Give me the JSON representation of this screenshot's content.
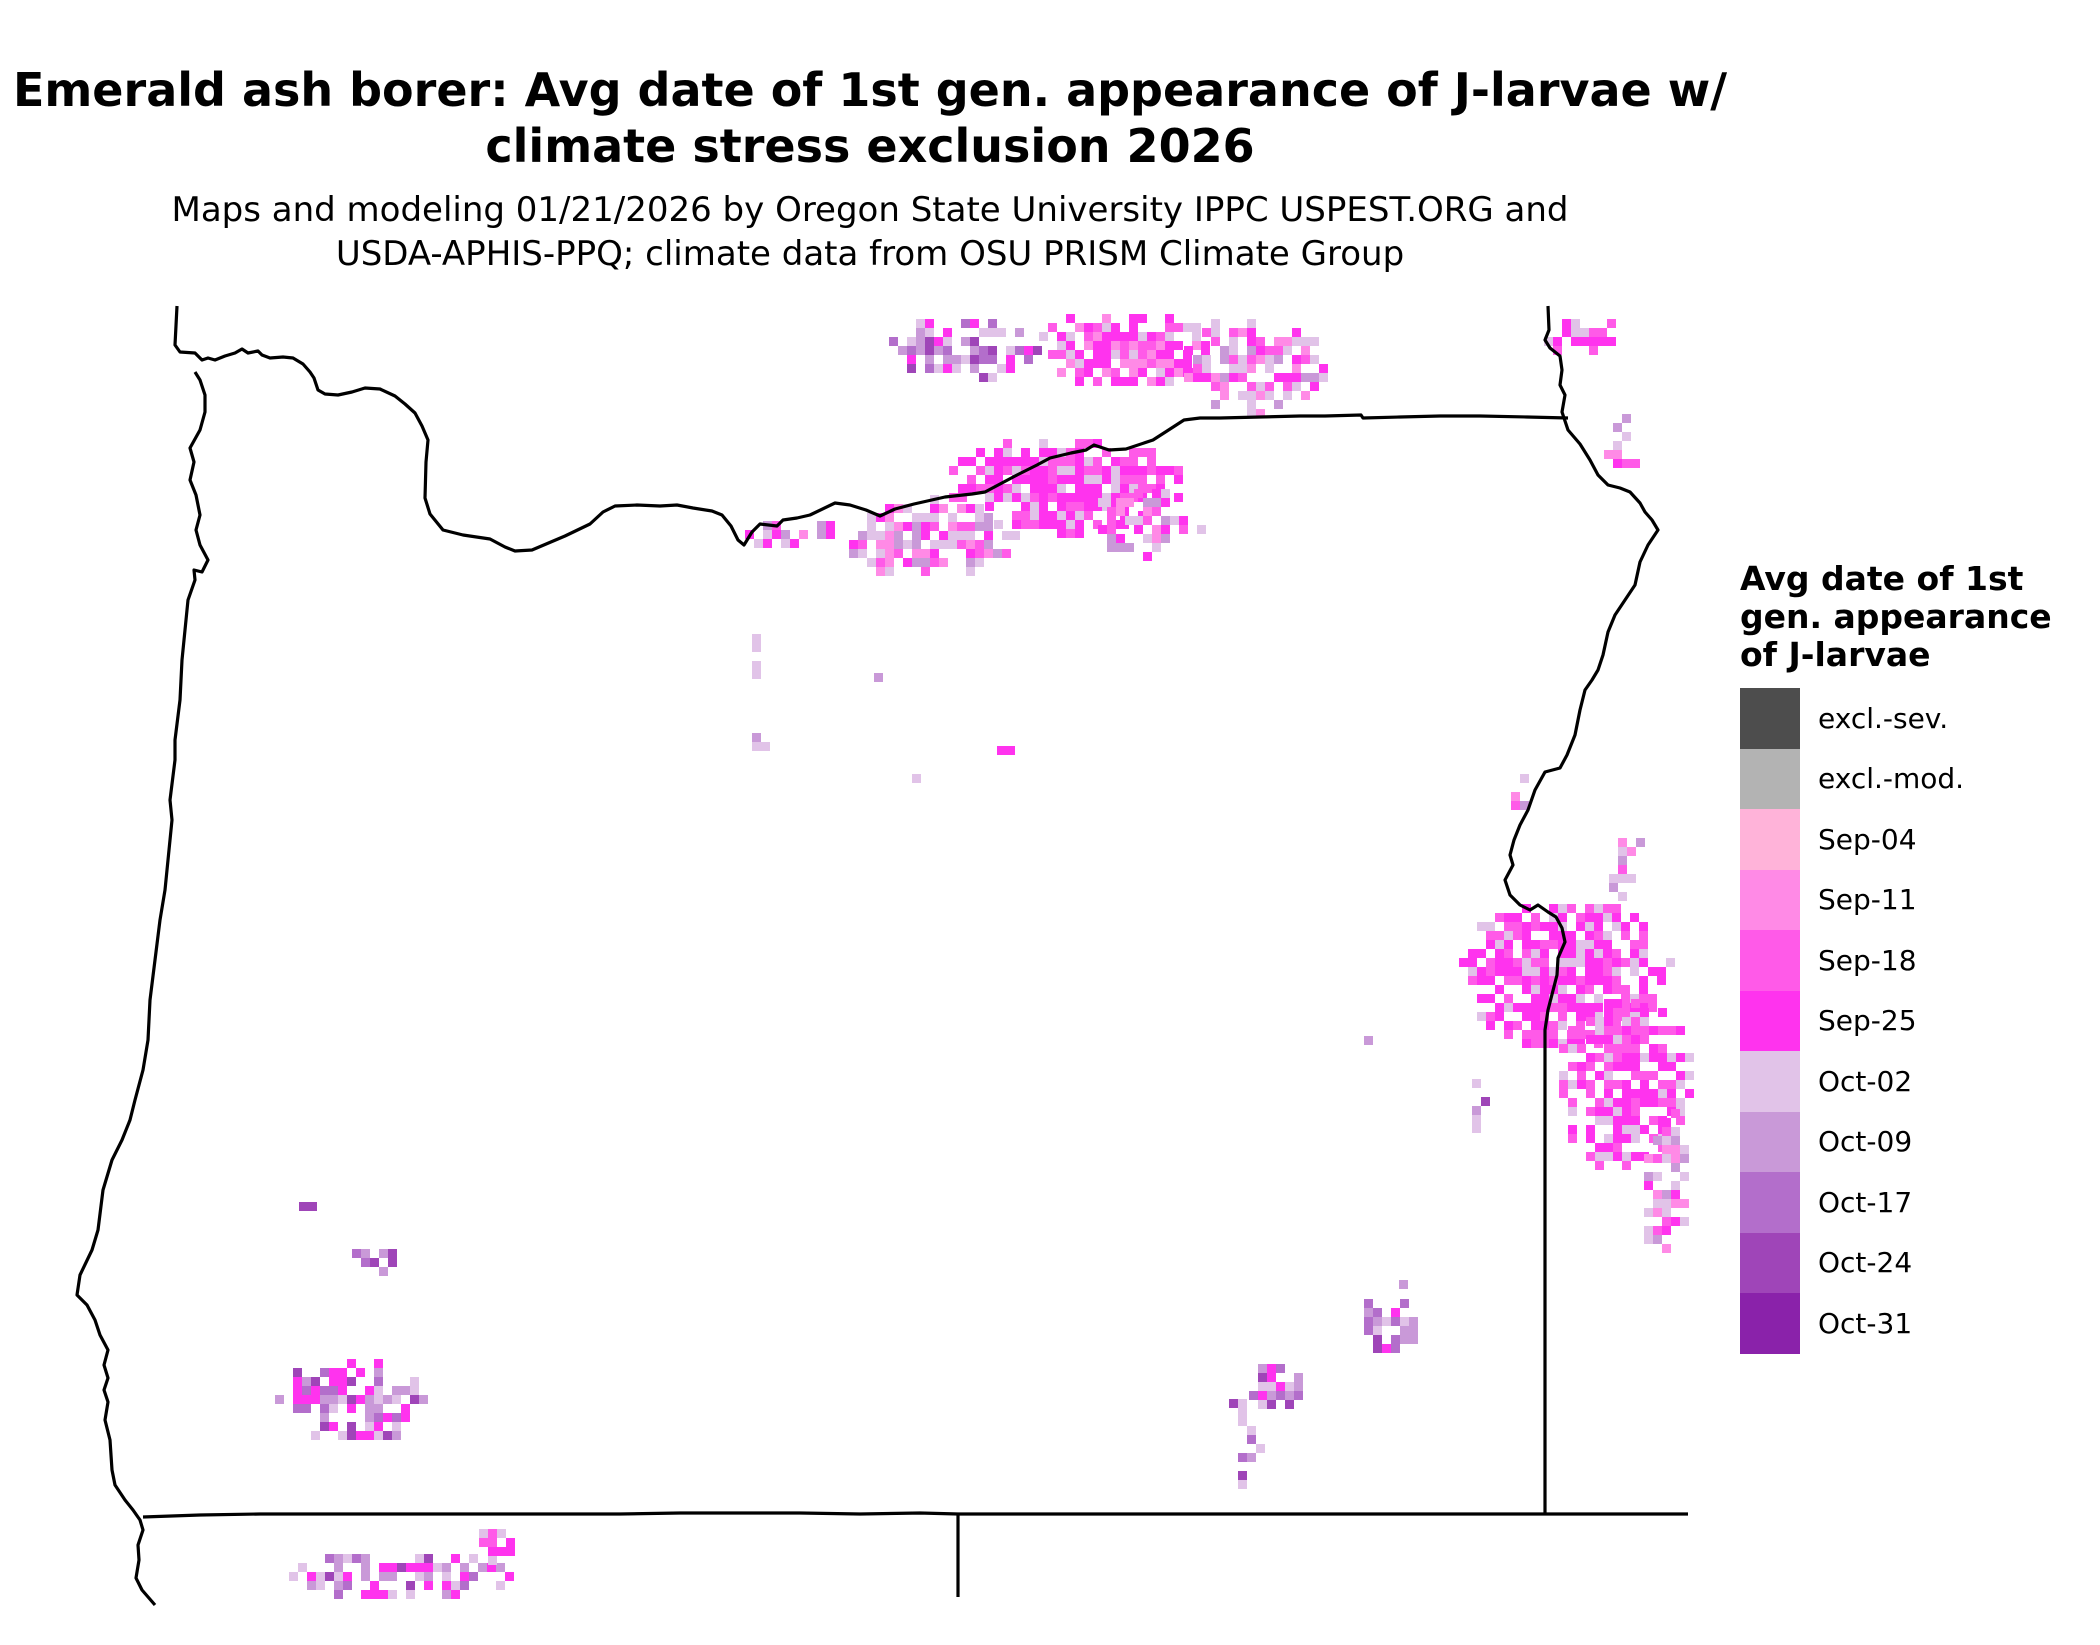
{
  "title": {
    "line1": "Emerald ash borer: Avg date of 1st gen. appearance of J-larvae w/",
    "line2": "climate stress exclusion 2026"
  },
  "subtitle": {
    "line1": "Maps and modeling 01/21/2026 by Oregon State University IPPC USPEST.ORG and",
    "line2": "USDA-APHIS-PPQ; climate data from OSU PRISM Climate Group"
  },
  "legend": {
    "title_line1": "Avg date of 1st",
    "title_line2": "gen. appearance",
    "title_line3": "of J-larvae",
    "items": [
      {
        "label": "excl.-sev.",
        "color": "#4d4d4d"
      },
      {
        "label": "excl.-mod.",
        "color": "#b3b3b3"
      },
      {
        "label": "Sep-04",
        "color": "#ffb3d9"
      },
      {
        "label": "Sep-11",
        "color": "#ff8ae6"
      },
      {
        "label": "Sep-18",
        "color": "#ff5ae8"
      },
      {
        "label": "Sep-25",
        "color": "#ff33ee"
      },
      {
        "label": "Oct-02",
        "color": "#e1c3e8"
      },
      {
        "label": "Oct-09",
        "color": "#c999d8"
      },
      {
        "label": "Oct-17",
        "color": "#b36ecb"
      },
      {
        "label": "Oct-24",
        "color": "#9f45b8"
      },
      {
        "label": "Oct-31",
        "color": "#8a22aa"
      }
    ]
  },
  "map": {
    "boundary_color": "#000000",
    "background": "#ffffff"
  }
}
